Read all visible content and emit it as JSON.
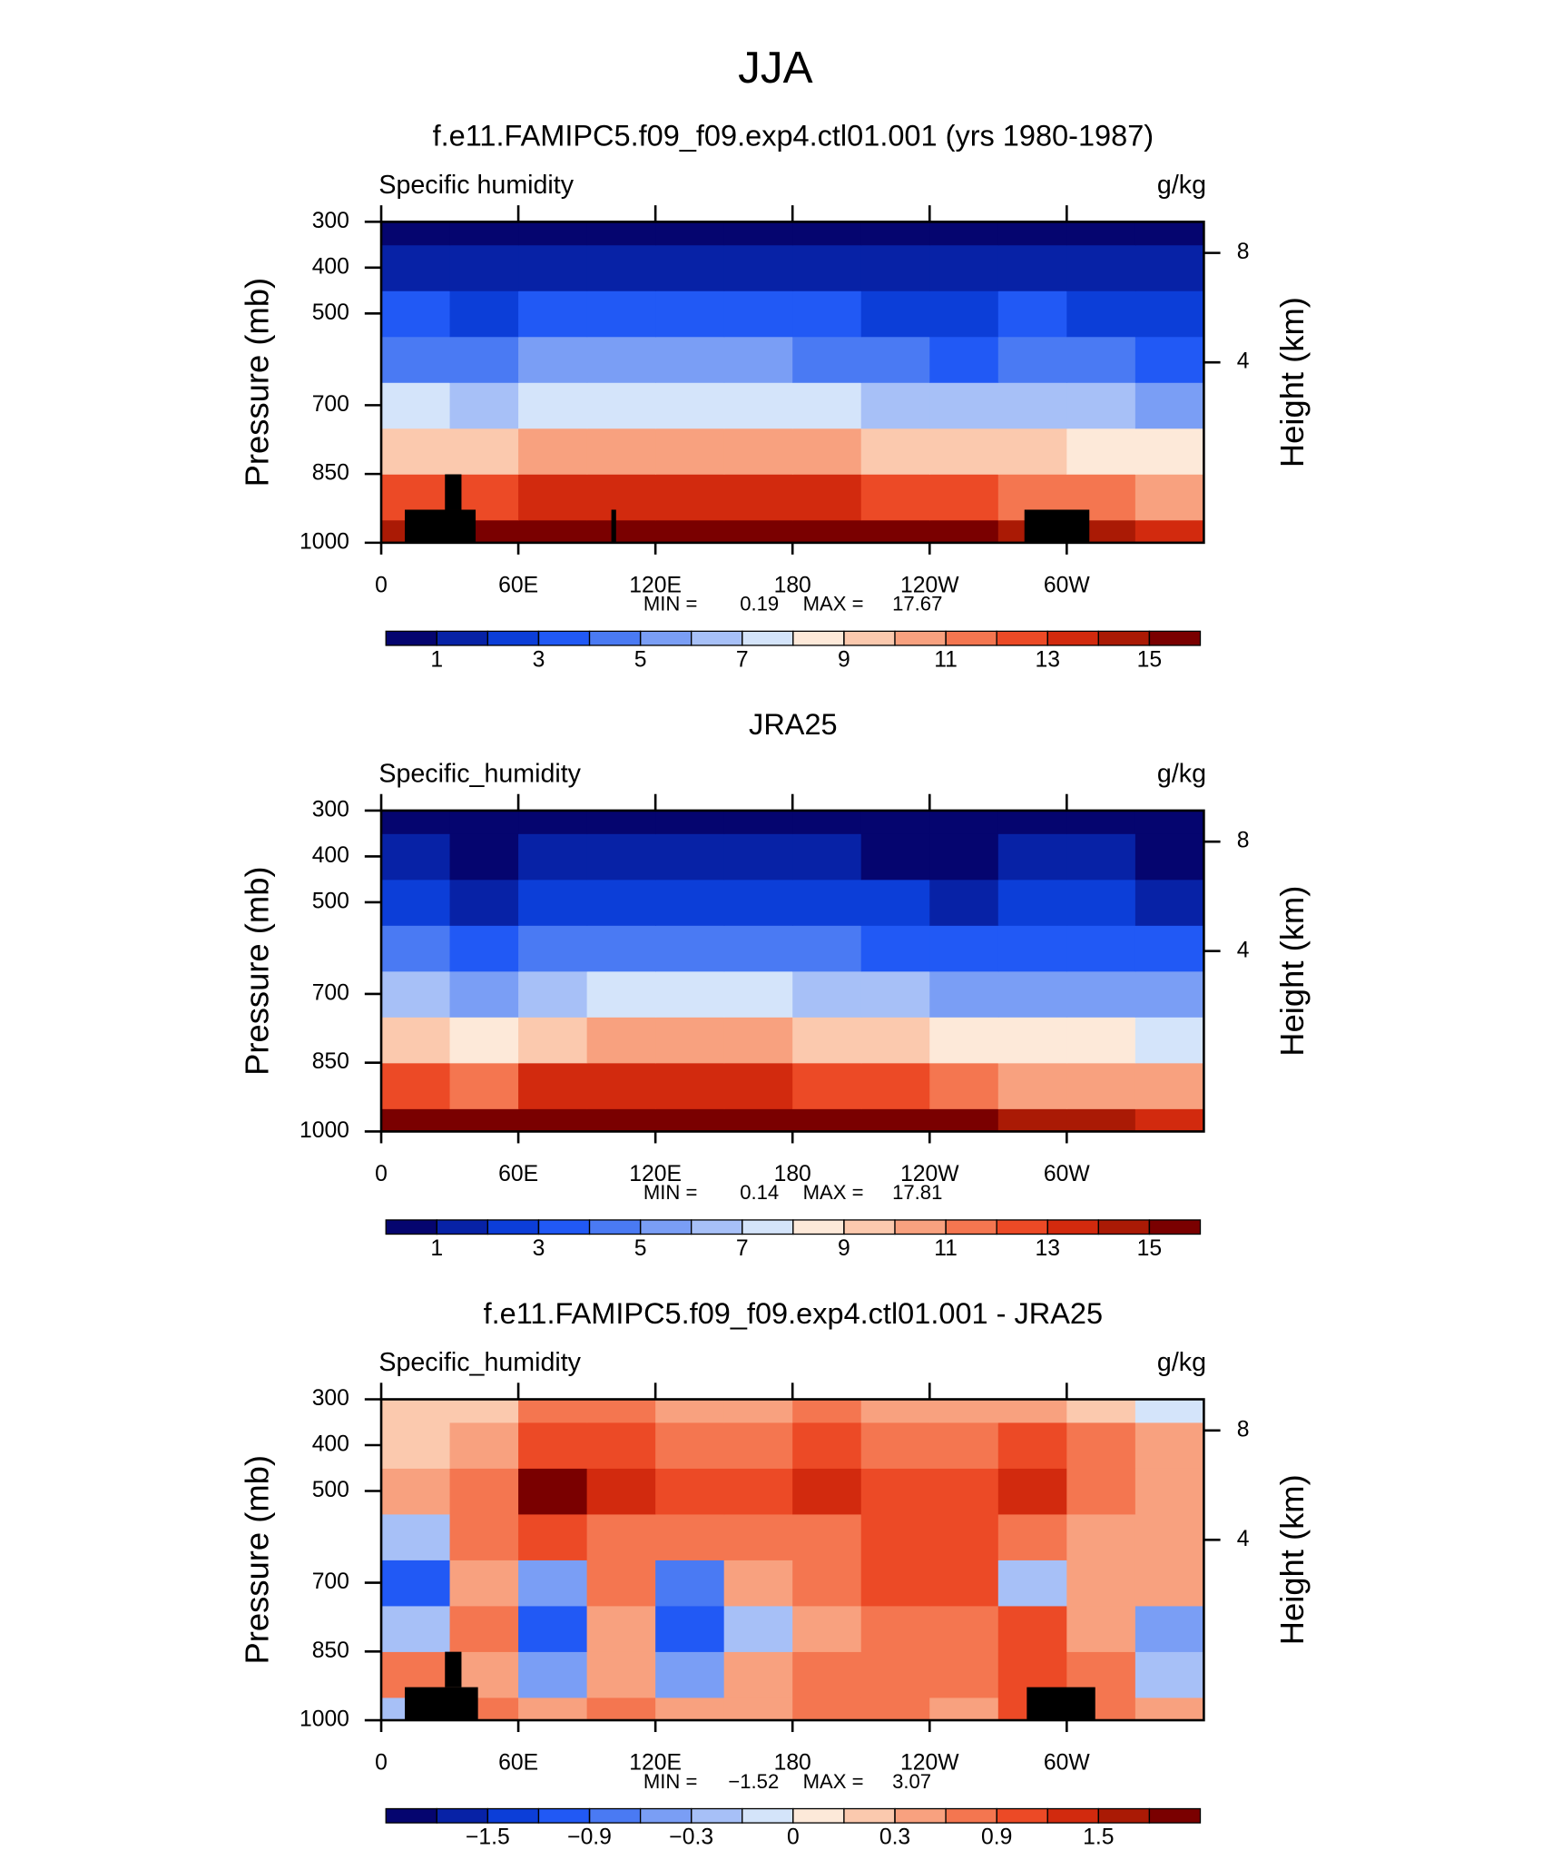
{
  "title": "JJA",
  "chart_data": [
    {
      "type": "contour",
      "title": "f.e11.FAMIPC5.f09_f09.exp4.ctl01.001 (yrs 1980-1987)",
      "variable": "Specific humidity",
      "units": "g/kg",
      "ylabel": "Pressure (mb)",
      "y2label": "Height (km)",
      "min_text": "MIN =",
      "min": 0.19,
      "max_text": "MAX =",
      "max": 17.67,
      "xlim": [
        0,
        360
      ],
      "ylim": [
        1000,
        300
      ],
      "xticks": [
        0,
        {
          "value": 60,
          "label": "60E"
        },
        {
          "value": 120,
          "label": "120E"
        },
        180,
        {
          "value": 240,
          "label": "120W"
        },
        {
          "value": 300,
          "label": "60W"
        }
      ],
      "yticks": [
        300,
        400,
        500,
        700,
        850,
        1000
      ],
      "y2ticks": [
        4,
        8
      ],
      "x": [
        15,
        45,
        75,
        105,
        135,
        165,
        195,
        225,
        255,
        285,
        315,
        345
      ],
      "y": [
        1000,
        900,
        800,
        700,
        600,
        500,
        400,
        300
      ],
      "z": [
        [
          14,
          15,
          16,
          16.5,
          17,
          17,
          16.5,
          16,
          15,
          14,
          14,
          13
        ],
        [
          12,
          12.5,
          13,
          13.5,
          13.5,
          13.5,
          13,
          12.5,
          12,
          11.5,
          11,
          10.5
        ],
        [
          9.5,
          9,
          10,
          10.5,
          10.5,
          10.5,
          10,
          9.5,
          9,
          9.5,
          8.5,
          8
        ],
        [
          7,
          6.5,
          7,
          7.5,
          7.5,
          7.5,
          7,
          6.5,
          6,
          6.5,
          6,
          5.5
        ],
        [
          4.5,
          4,
          5,
          5,
          5,
          5,
          4.8,
          4.2,
          3.8,
          4.5,
          4,
          3.5
        ],
        [
          3,
          2.5,
          3.2,
          3.2,
          3.2,
          3.2,
          3,
          2.5,
          2.2,
          3,
          2.6,
          2.2
        ],
        [
          1.6,
          1.4,
          1.8,
          1.8,
          1.8,
          1.8,
          1.6,
          1.3,
          1.1,
          1.6,
          1.4,
          1.2
        ],
        [
          0.6,
          0.5,
          0.8,
          0.8,
          0.8,
          0.8,
          0.7,
          0.5,
          0.4,
          0.7,
          0.6,
          0.4
        ]
      ],
      "levels": [
        1,
        2,
        3,
        4,
        5,
        6,
        7,
        8,
        9,
        10,
        11,
        12,
        13,
        14,
        15
      ],
      "colorbar_ticks": [
        1,
        3,
        5,
        7,
        9,
        11,
        13,
        15
      ],
      "colors": [
        "#05056f",
        "#0722a6",
        "#0c3ed8",
        "#2159f5",
        "#4a7af3",
        "#7a9ef5",
        "#a7c0f7",
        "#d4e4fa",
        "#fde9d9",
        "#fbc9ae",
        "#f8a17f",
        "#f47650",
        "#ec4a26",
        "#d22a0e",
        "#aa1a05",
        "#7a0000"
      ]
    },
    {
      "type": "contour",
      "title": "JRA25",
      "variable": "Specific_humidity",
      "units": "g/kg",
      "ylabel": "Pressure (mb)",
      "y2label": "Height (km)",
      "min_text": "MIN =",
      "min": 0.14,
      "max_text": "MAX =",
      "max": 17.81,
      "xlim": [
        0,
        360
      ],
      "ylim": [
        1000,
        300
      ],
      "xticks": [
        0,
        {
          "value": 60,
          "label": "60E"
        },
        {
          "value": 120,
          "label": "120E"
        },
        180,
        {
          "value": 240,
          "label": "120W"
        },
        {
          "value": 300,
          "label": "60W"
        }
      ],
      "yticks": [
        300,
        400,
        500,
        700,
        850,
        1000
      ],
      "y2ticks": [
        4,
        8
      ],
      "x": [
        15,
        45,
        75,
        105,
        135,
        165,
        195,
        225,
        255,
        285,
        315,
        345
      ],
      "y": [
        1000,
        900,
        800,
        700,
        600,
        500,
        400,
        300
      ],
      "z": [
        [
          15,
          15.5,
          16.5,
          17,
          17,
          17,
          16.5,
          16,
          15,
          14.5,
          14,
          13
        ],
        [
          12,
          11.5,
          13,
          13,
          13,
          13,
          12.5,
          12,
          11,
          10.5,
          10.5,
          10
        ],
        [
          9.5,
          8.5,
          9.5,
          10,
          10,
          10,
          9.5,
          9,
          8,
          8.5,
          8,
          7.5
        ],
        [
          6.5,
          5.5,
          6.5,
          7,
          7,
          7,
          6.5,
          6,
          5.2,
          5.5,
          5.5,
          5
        ],
        [
          4,
          3,
          4,
          4.5,
          4.5,
          4.5,
          4,
          3.5,
          3,
          3.5,
          3.5,
          3
        ],
        [
          2.3,
          1.5,
          2.5,
          2.8,
          2.8,
          2.8,
          2.4,
          2,
          1.6,
          2,
          2,
          1.8
        ],
        [
          1.1,
          0.8,
          1.2,
          1.4,
          1.5,
          1.3,
          1.1,
          0.9,
          0.7,
          1,
          1,
          0.9
        ],
        [
          0.4,
          0.3,
          0.5,
          0.6,
          0.6,
          0.5,
          0.4,
          0.3,
          0.3,
          0.4,
          0.4,
          0.3
        ]
      ],
      "levels": [
        1,
        2,
        3,
        4,
        5,
        6,
        7,
        8,
        9,
        10,
        11,
        12,
        13,
        14,
        15
      ],
      "colorbar_ticks": [
        1,
        3,
        5,
        7,
        9,
        11,
        13,
        15
      ],
      "colors": [
        "#05056f",
        "#0722a6",
        "#0c3ed8",
        "#2159f5",
        "#4a7af3",
        "#7a9ef5",
        "#a7c0f7",
        "#d4e4fa",
        "#fde9d9",
        "#fbc9ae",
        "#f8a17f",
        "#f47650",
        "#ec4a26",
        "#d22a0e",
        "#aa1a05",
        "#7a0000"
      ]
    },
    {
      "type": "contour",
      "title": "f.e11.FAMIPC5.f09_f09.exp4.ctl01.001 - JRA25",
      "variable": "Specific_humidity",
      "units": "g/kg",
      "ylabel": "Pressure (mb)",
      "y2label": "Height (km)",
      "min_text": "MIN =",
      "min": {
        "value": -1.52,
        "label": "−1.52"
      },
      "max_text": "MAX =",
      "max": 3.07,
      "xlim": [
        0,
        360
      ],
      "ylim": [
        1000,
        300
      ],
      "xticks": [
        0,
        {
          "value": 60,
          "label": "60E"
        },
        {
          "value": 120,
          "label": "120E"
        },
        180,
        {
          "value": 240,
          "label": "120W"
        },
        {
          "value": 300,
          "label": "60W"
        }
      ],
      "yticks": [
        300,
        400,
        500,
        700,
        850,
        1000
      ],
      "y2ticks": [
        4,
        8
      ],
      "x": [
        15,
        45,
        75,
        105,
        135,
        165,
        195,
        225,
        255,
        285,
        315,
        345
      ],
      "y": [
        1000,
        900,
        800,
        700,
        600,
        500,
        400,
        300
      ],
      "z": [
        [
          -0.3,
          0.6,
          0.3,
          0.6,
          0.3,
          0.3,
          0.6,
          0.6,
          0.3,
          0.9,
          0.6,
          0.3
        ],
        [
          0.6,
          0.3,
          -0.6,
          0.3,
          -0.6,
          0.3,
          0.6,
          0.6,
          0.6,
          0.9,
          0.6,
          -0.3
        ],
        [
          -0.3,
          0.6,
          -1.2,
          0.3,
          -1.2,
          -0.3,
          0.3,
          0.6,
          0.6,
          0.9,
          0.3,
          -0.6
        ],
        [
          -1.2,
          0.3,
          -0.6,
          0.6,
          -0.9,
          0.3,
          0.6,
          0.9,
          0.9,
          -0.3,
          0.3,
          0.3
        ],
        [
          -0.3,
          0.6,
          0.9,
          0.6,
          0.6,
          0.6,
          0.6,
          0.9,
          0.9,
          0.6,
          0.3,
          0.3
        ],
        [
          0.3,
          0.6,
          1.8,
          1.2,
          0.9,
          0.9,
          1.2,
          0.9,
          0.9,
          1.2,
          0.6,
          0.3
        ],
        [
          0.1,
          0.3,
          0.9,
          0.9,
          0.6,
          0.6,
          0.9,
          0.6,
          0.6,
          0.9,
          0.6,
          0.3
        ],
        [
          0.1,
          0.1,
          0.6,
          0.6,
          0.3,
          0.3,
          0.6,
          0.3,
          0.3,
          0.3,
          0.1,
          -0.1
        ]
      ],
      "levels": [
        -1.8,
        -1.5,
        -1.2,
        -0.9,
        -0.6,
        -0.3,
        -0.1,
        0,
        0.1,
        0.3,
        0.6,
        0.9,
        1.2,
        1.5,
        1.8
      ],
      "colorbar_ticks": [
        {
          "value": -1.5,
          "label": "−1.5"
        },
        {
          "value": -0.9,
          "label": "−0.9"
        },
        {
          "value": -0.3,
          "label": "−0.3"
        },
        0,
        0.3,
        0.9,
        1.5
      ],
      "colors": [
        "#05056f",
        "#0722a6",
        "#0c3ed8",
        "#2159f5",
        "#4a7af3",
        "#7a9ef5",
        "#a7c0f7",
        "#d4e4fa",
        "#fde9d9",
        "#fbc9ae",
        "#f8a17f",
        "#f47650",
        "#ec4a26",
        "#d22a0e",
        "#aa1a05",
        "#7a0000"
      ]
    }
  ]
}
